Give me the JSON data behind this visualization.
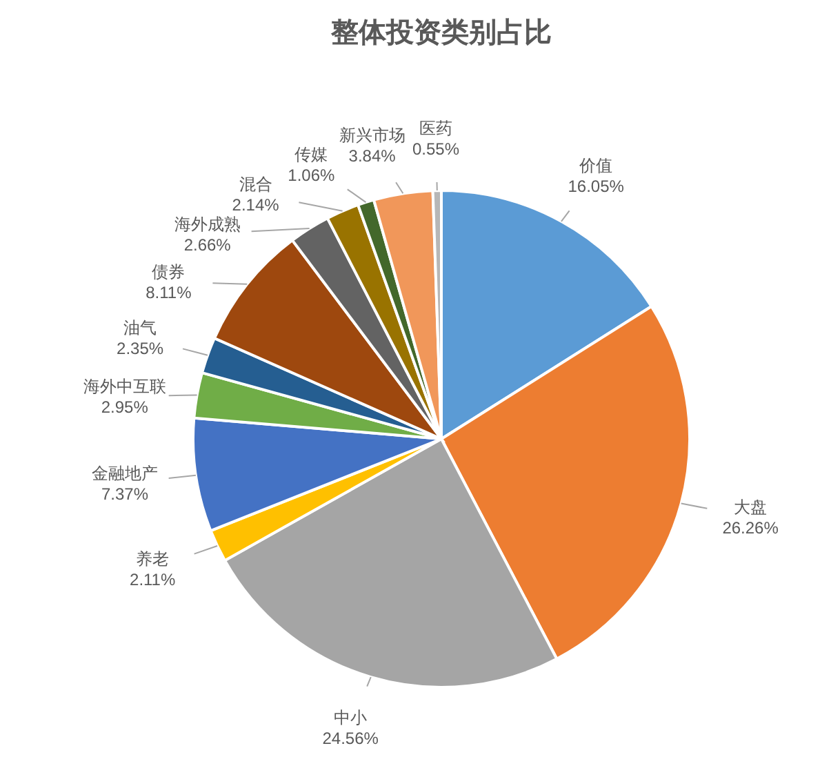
{
  "chart_data": {
    "type": "pie",
    "title": "整体投资类别占比",
    "categories": [
      "价值",
      "大盘",
      "中小",
      "养老",
      "金融地产",
      "海外中互联",
      "油气",
      "债券",
      "海外成熟",
      "混合",
      "传媒",
      "新兴市场",
      "医药"
    ],
    "values": [
      16.05,
      26.26,
      24.56,
      2.11,
      7.37,
      2.95,
      2.35,
      8.11,
      2.66,
      2.14,
      1.06,
      3.84,
      0.55
    ],
    "colors": [
      "#5b9bd5",
      "#ed7d31",
      "#a5a5a5",
      "#ffc000",
      "#4472c4",
      "#70ad47",
      "#255e91",
      "#9e480e",
      "#636363",
      "#997300",
      "#43682b",
      "#f1975a",
      "#b7b7b7"
    ],
    "value_labels": [
      "16.05%",
      "26.26%",
      "24.56%",
      "2.11%",
      "7.37%",
      "2.95%",
      "2.35%",
      "8.11%",
      "2.66%",
      "2.14%",
      "1.06%",
      "3.84%",
      "0.55%"
    ]
  }
}
